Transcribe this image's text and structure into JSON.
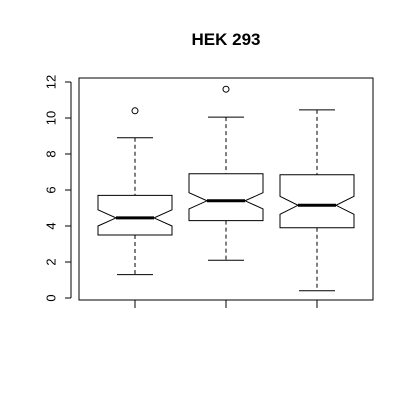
{
  "chart_data": {
    "type": "boxplot",
    "title": "HEK 293",
    "xlabel": "",
    "ylabel": "",
    "ylim": [
      0,
      12
    ],
    "yticks": [
      0,
      2,
      4,
      6,
      8,
      10,
      12
    ],
    "notched": true,
    "grid": false,
    "series": [
      {
        "min": 1.3,
        "q1": 3.5,
        "median": 4.45,
        "q3": 5.7,
        "max": 8.9,
        "notch_low": 4.0,
        "notch_high": 4.9,
        "outliers": [
          10.4
        ]
      },
      {
        "min": 2.1,
        "q1": 4.3,
        "median": 5.4,
        "q3": 6.9,
        "max": 10.05,
        "notch_low": 4.95,
        "notch_high": 5.85,
        "outliers": [
          11.6
        ]
      },
      {
        "min": 0.4,
        "q1": 3.9,
        "median": 5.15,
        "q3": 6.85,
        "max": 10.45,
        "notch_low": 4.65,
        "notch_high": 5.65,
        "outliers": []
      }
    ],
    "colors": {
      "box_fill": "#ffffff",
      "stroke": "#000000"
    }
  }
}
